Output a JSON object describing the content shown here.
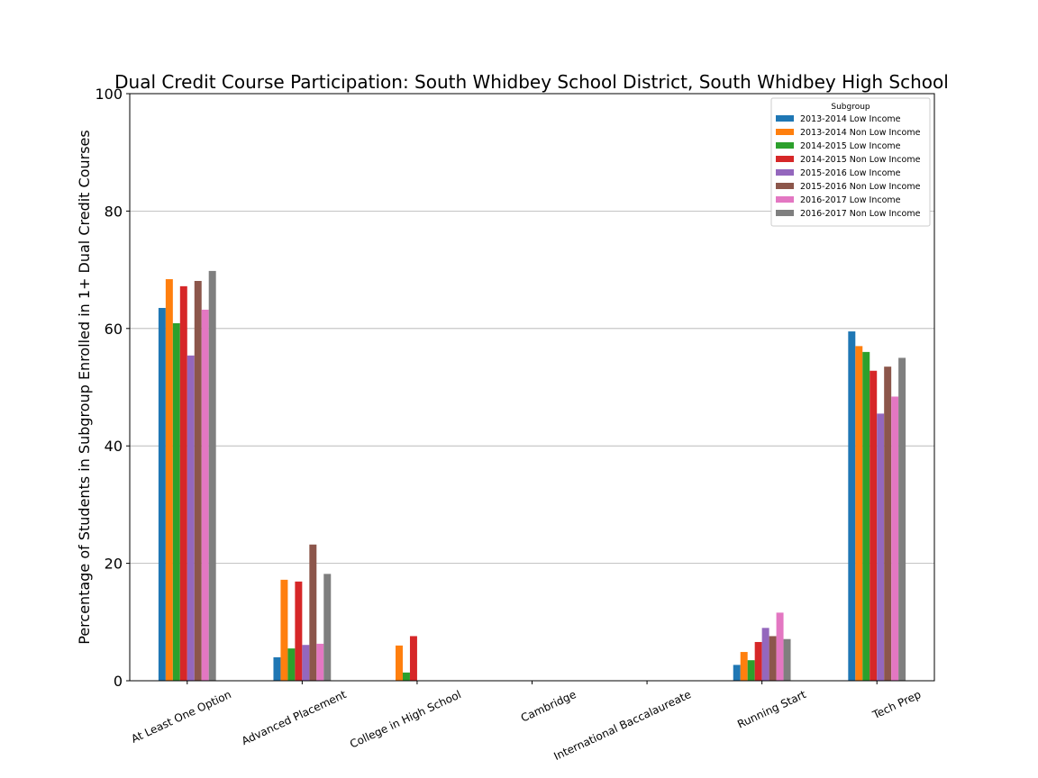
{
  "chart_data": {
    "type": "bar",
    "title": "Dual Credit Course Participation: South Whidbey School District, South Whidbey High School",
    "xlabel": "",
    "ylabel": "Percentage of Students in Subgroup Enrolled in 1+ Dual Credit Courses",
    "ylim": [
      0,
      100
    ],
    "yticks": [
      0,
      20,
      40,
      60,
      80,
      100
    ],
    "grid": "y",
    "legend_title": "Subgroup",
    "legend_position": "top-right",
    "categories": [
      "At Least One Option",
      "Advanced Placement",
      "College in High School",
      "Cambridge",
      "International Baccalaureate",
      "Running Start",
      "Tech Prep"
    ],
    "series": [
      {
        "name": "2013-2014 Low Income",
        "color": "#1f77b4",
        "values": [
          63.5,
          4.0,
          0,
          0,
          0,
          2.7,
          59.5
        ]
      },
      {
        "name": "2013-2014 Non Low Income",
        "color": "#ff7f0e",
        "values": [
          68.4,
          17.2,
          6.0,
          0,
          0,
          4.9,
          57.0
        ]
      },
      {
        "name": "2014-2015 Low Income",
        "color": "#2ca02c",
        "values": [
          60.9,
          5.5,
          1.4,
          0,
          0,
          3.5,
          56.0
        ]
      },
      {
        "name": "2014-2015 Non Low Income",
        "color": "#d62728",
        "values": [
          67.2,
          16.9,
          7.6,
          0,
          0,
          6.6,
          52.8
        ]
      },
      {
        "name": "2015-2016 Low Income",
        "color": "#9467bd",
        "values": [
          55.4,
          6.1,
          0,
          0,
          0,
          9.0,
          45.5
        ]
      },
      {
        "name": "2015-2016 Non Low Income",
        "color": "#8c564b",
        "values": [
          68.1,
          23.2,
          0,
          0,
          0,
          7.6,
          53.5
        ]
      },
      {
        "name": "2016-2017 Low Income",
        "color": "#e377c2",
        "values": [
          63.2,
          6.3,
          0,
          0,
          0,
          11.6,
          48.4
        ]
      },
      {
        "name": "2016-2017 Non Low Income",
        "color": "#7f7f7f",
        "values": [
          69.8,
          18.2,
          0,
          0,
          0,
          7.1,
          55.0
        ]
      }
    ]
  }
}
